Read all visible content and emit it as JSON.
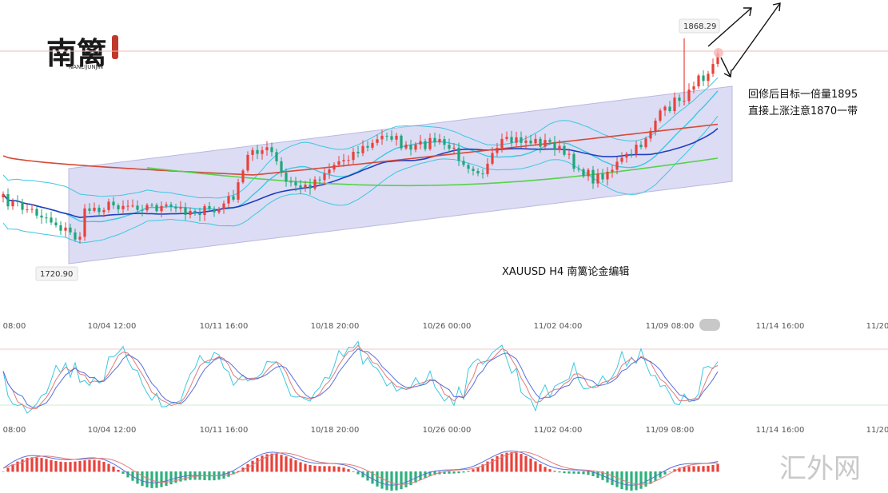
{
  "logo": {
    "brand_glyphs": "南篱",
    "brand_latin": "NANLIJUNJIN"
  },
  "watermark": "汇外网",
  "chart_data": {
    "type": "candlestick",
    "title": "XAUUSD H4  南篱论金编辑",
    "price_labels": {
      "high": "1868.29",
      "low": "1720.90"
    },
    "price_range": [
      1690,
      1880
    ],
    "x_ticks": [
      "08:00",
      "10/04 12:00",
      "10/11 16:00",
      "10/18 20:00",
      "10/26 00:00",
      "11/02 04:00",
      "11/09 08:00",
      "11/14 16:00",
      "11/20"
    ],
    "annotations": [
      "回修后目标一倍量1895",
      "直接上涨注意1870一带"
    ],
    "colors": {
      "up": "#e8413b",
      "down": "#1fa57a",
      "channel": "#c9c9ee",
      "ma_blue": "#1f3fbf",
      "ma_red": "#d54a37",
      "ma_green": "#58d14a",
      "boll": "#3cc8e0",
      "macd_up": "#e8413b",
      "macd_down": "#2db07c"
    },
    "indicators": [
      "Bollinger Bands",
      "MA",
      "KDJ",
      "MACD"
    ]
  }
}
